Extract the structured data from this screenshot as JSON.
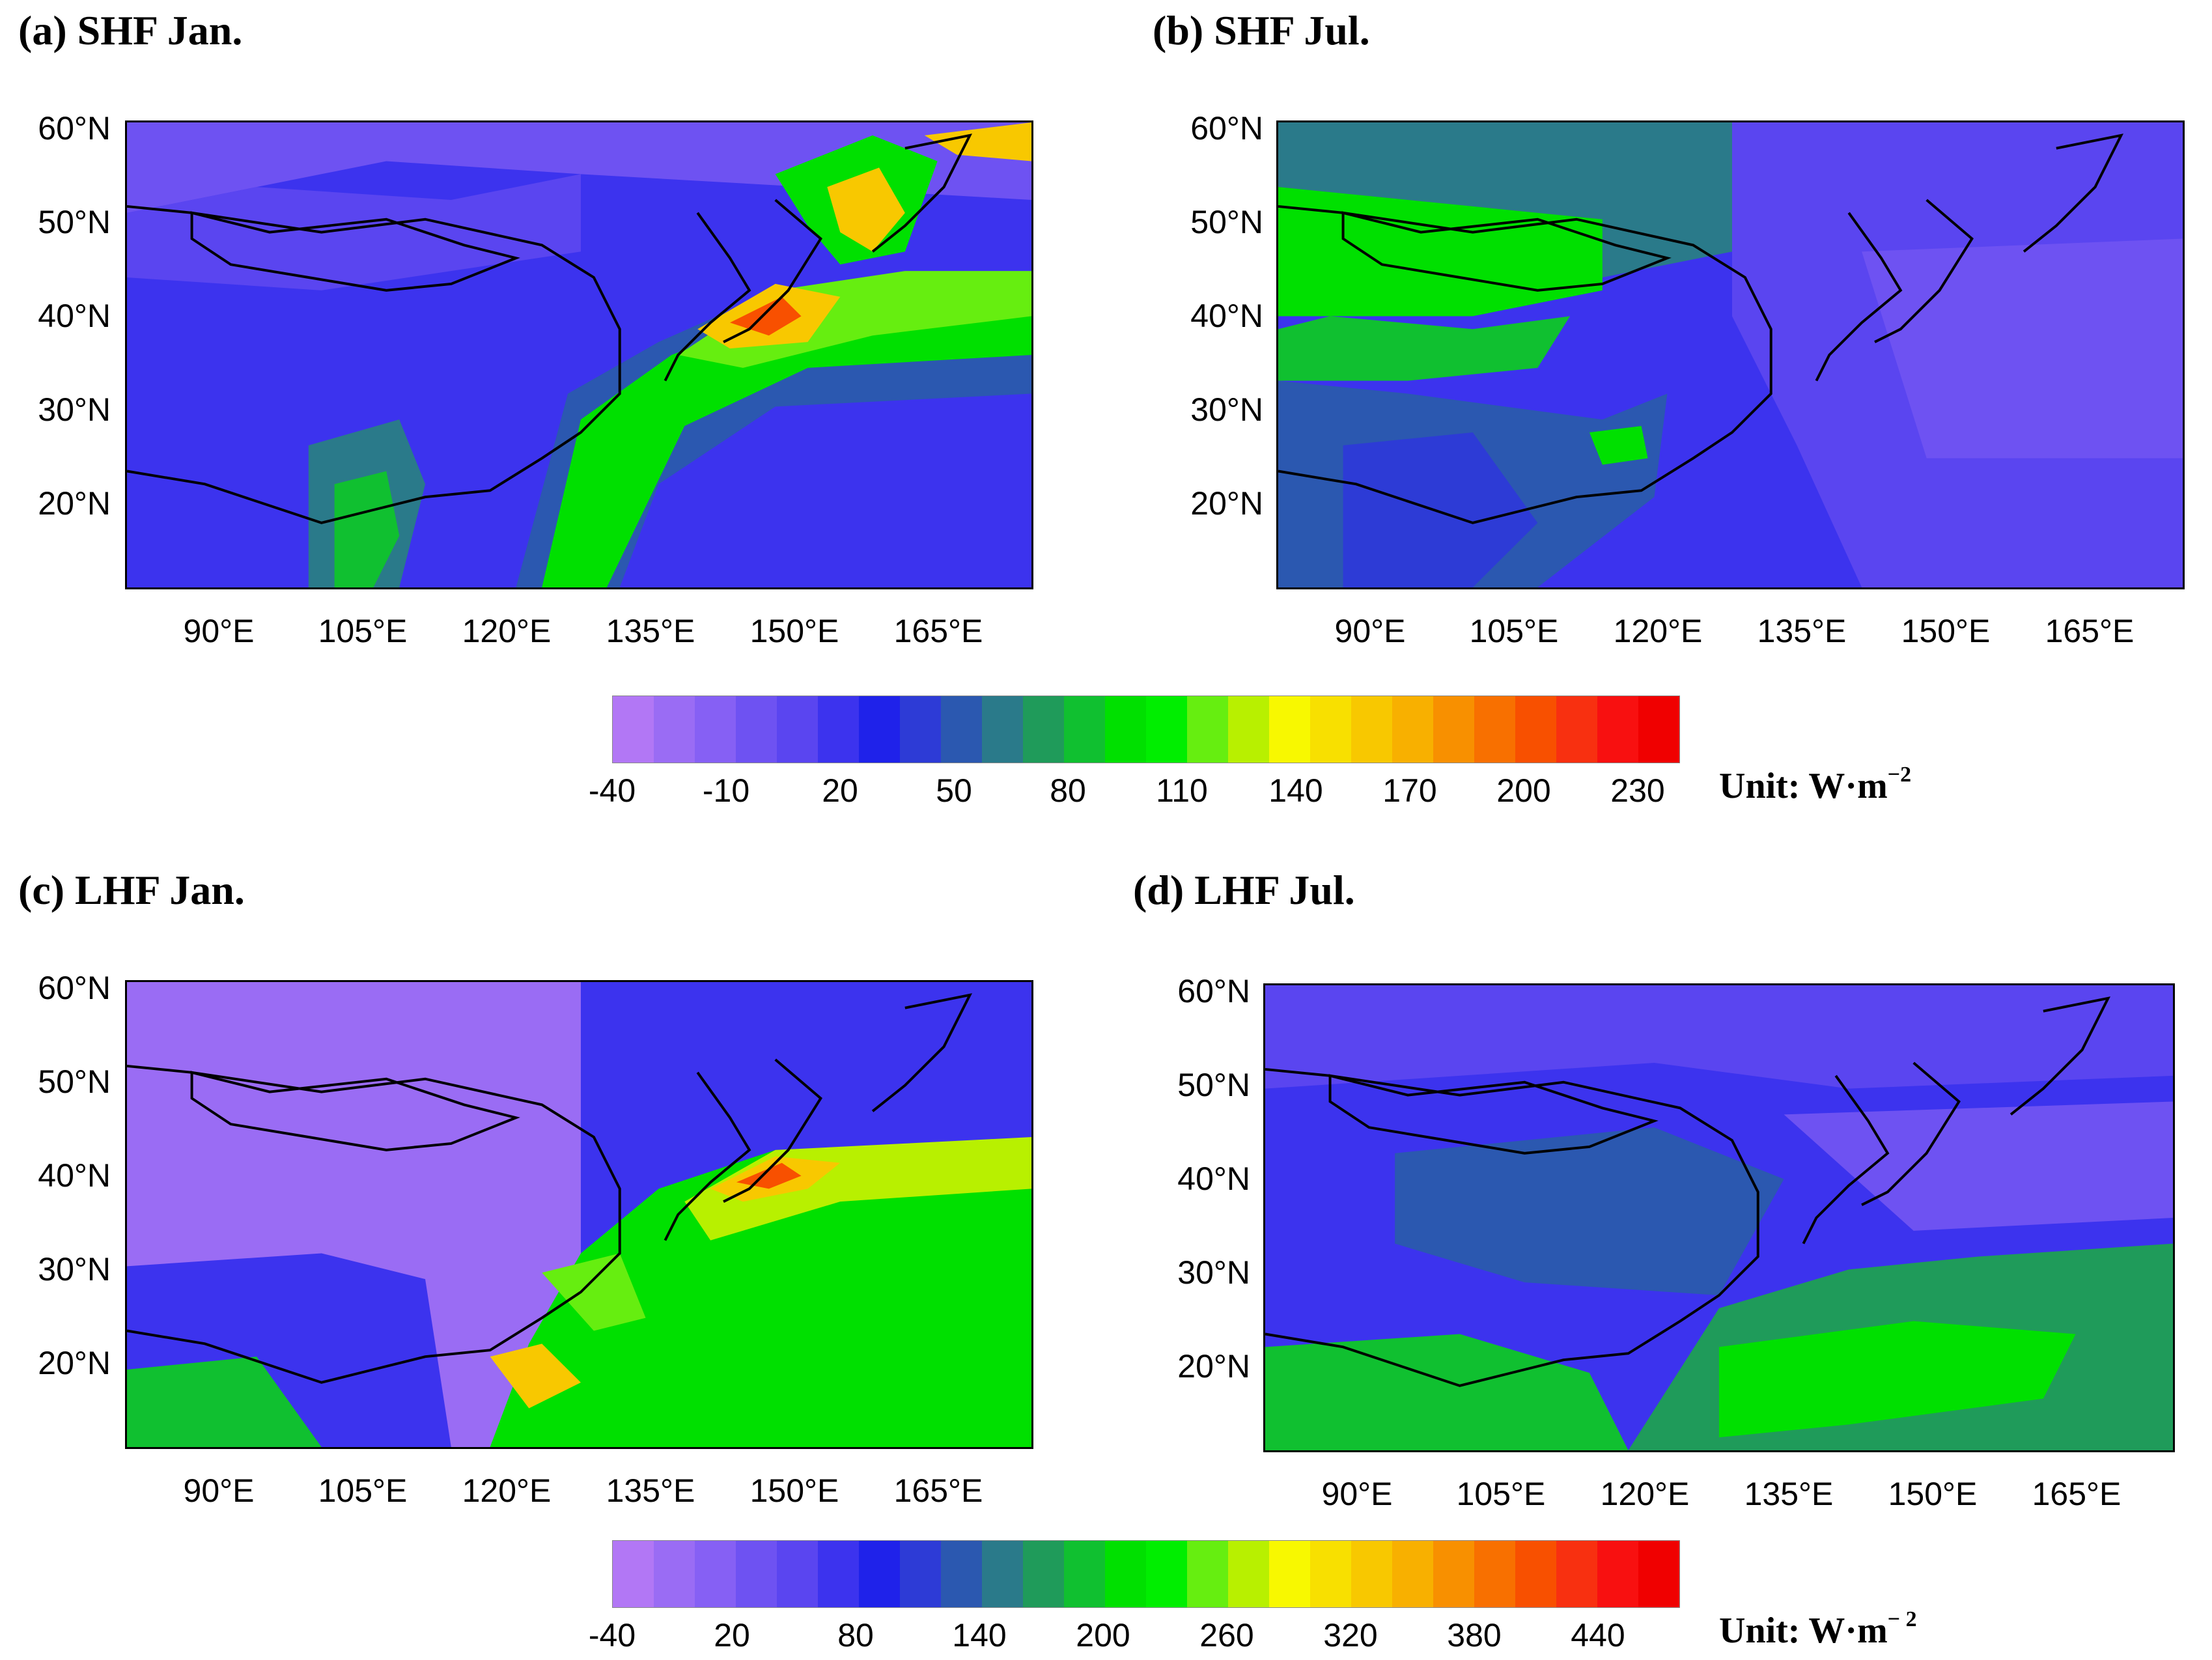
{
  "panels": [
    {
      "id": "a",
      "title": "(a) SHF Jan."
    },
    {
      "id": "b",
      "title": "(b) SHF Jul."
    },
    {
      "id": "c",
      "title": "(c) LHF Jan."
    },
    {
      "id": "d",
      "title": "(d) LHF Jul."
    }
  ],
  "lat_labels": [
    "60°N",
    "50°N",
    "40°N",
    "30°N",
    "20°N"
  ],
  "lon_labels": [
    "90°E",
    "105°E",
    "120°E",
    "135°E",
    "150°E",
    "165°E"
  ],
  "colorbar_shf": {
    "labels": [
      "-40",
      "-10",
      "20",
      "50",
      "80",
      "110",
      "140",
      "170",
      "200",
      "230"
    ],
    "unit_text": "Unit: W·m",
    "unit_exp": "−2"
  },
  "colorbar_lhf": {
    "labels": [
      "-40",
      "20",
      "80",
      "140",
      "200",
      "260",
      "320",
      "380",
      "440"
    ],
    "unit_text": "Unit: W·m",
    "unit_exp": "− 2"
  },
  "colors": {
    "scale": [
      "#b277f5",
      "#9a6cf4",
      "#8660f4",
      "#6e52f2",
      "#5a45f0",
      "#3c33ee",
      "#1f22ea",
      "#2d3bd6",
      "#2b58b0",
      "#2a7a8a",
      "#1f9b5a",
      "#10c030",
      "#00e000",
      "#00ee00",
      "#66ee10",
      "#b8f000",
      "#f8f800",
      "#f8e000",
      "#f8c800",
      "#f8b000",
      "#f89000",
      "#f87000",
      "#f85000",
      "#f83010",
      "#f81010",
      "#f00000"
    ]
  }
}
